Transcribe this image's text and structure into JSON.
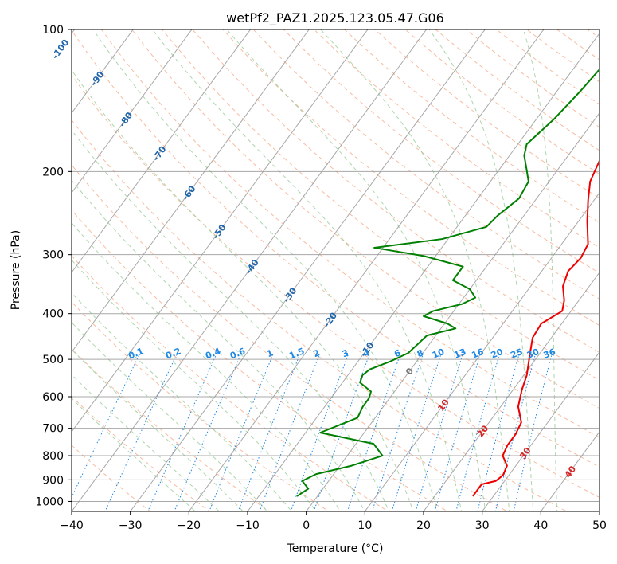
{
  "chart_data": {
    "type": "line",
    "title": "wetPf2_PAZ1.2025.123.05.47.G06",
    "xlabel": "Temperature (°C)",
    "ylabel": "Pressure (hPa)",
    "xlim": [
      -40,
      50
    ],
    "ylim": [
      1050,
      100
    ],
    "y_scale": "log",
    "grid": true,
    "x_ticks": [
      "−40",
      "−30",
      "−20",
      "−10",
      "0",
      "10",
      "20",
      "30",
      "40",
      "50"
    ],
    "x_tick_values": [
      -40,
      -30,
      -20,
      -10,
      0,
      10,
      20,
      30,
      40,
      50
    ],
    "y_ticks": [
      "100",
      "200",
      "300",
      "400",
      "500",
      "600",
      "700",
      "800",
      "900",
      "1000"
    ],
    "y_tick_values": [
      100,
      200,
      300,
      400,
      500,
      600,
      700,
      800,
      900,
      1000
    ],
    "colors": {
      "temperature": "#ee0000",
      "dewpoint": "#008000",
      "isotherm": "#999999",
      "dry_adiabat": "#f4a582",
      "moist_adiabat": "#99cc99",
      "mixing_ratio": "#1e88e5",
      "isotherm_label": "#2166ac",
      "adiabat_label": "#d62728"
    },
    "series": [
      {
        "name": "",
        "role": "temperature",
        "points": [
          {
            "t": -0.5,
            "p": 100
          },
          {
            "t": 2.0,
            "p": 115
          },
          {
            "t": 2.0,
            "p": 130
          },
          {
            "t": 2.5,
            "p": 150
          },
          {
            "t": 4.5,
            "p": 170
          },
          {
            "t": 6.0,
            "p": 190
          },
          {
            "t": 7.0,
            "p": 210
          },
          {
            "t": 9.0,
            "p": 230
          },
          {
            "t": 11.5,
            "p": 255
          },
          {
            "t": 14.5,
            "p": 285
          },
          {
            "t": 15.0,
            "p": 305
          },
          {
            "t": 14.5,
            "p": 325
          },
          {
            "t": 15.5,
            "p": 350
          },
          {
            "t": 17.5,
            "p": 375
          },
          {
            "t": 18.5,
            "p": 395
          },
          {
            "t": 16.5,
            "p": 420
          },
          {
            "t": 16.8,
            "p": 450
          },
          {
            "t": 18.5,
            "p": 490
          },
          {
            "t": 20.5,
            "p": 540
          },
          {
            "t": 21.5,
            "p": 580
          },
          {
            "t": 23.0,
            "p": 630
          },
          {
            "t": 25.5,
            "p": 680
          },
          {
            "t": 26.0,
            "p": 720
          },
          {
            "t": 26.0,
            "p": 760
          },
          {
            "t": 26.5,
            "p": 800
          },
          {
            "t": 28.5,
            "p": 840
          },
          {
            "t": 29.0,
            "p": 880
          },
          {
            "t": 28.5,
            "p": 905
          },
          {
            "t": 26.5,
            "p": 920
          },
          {
            "t": 26.5,
            "p": 960
          },
          {
            "t": 26.5,
            "p": 975
          }
        ]
      },
      {
        "name": "",
        "role": "dewpoint",
        "points": [
          {
            "t": -0.5,
            "p": 100
          },
          {
            "t": -1.5,
            "p": 107
          },
          {
            "t": -4.0,
            "p": 115
          },
          {
            "t": -5.5,
            "p": 122
          },
          {
            "t": -6.0,
            "p": 135
          },
          {
            "t": -7.0,
            "p": 155
          },
          {
            "t": -8.5,
            "p": 175
          },
          {
            "t": -7.5,
            "p": 185
          },
          {
            "t": -5.5,
            "p": 197
          },
          {
            "t": -3.5,
            "p": 210
          },
          {
            "t": -3.0,
            "p": 228
          },
          {
            "t": -4.5,
            "p": 248
          },
          {
            "t": -5.0,
            "p": 262
          },
          {
            "t": -11.0,
            "p": 278
          },
          {
            "t": -21.5,
            "p": 290
          },
          {
            "t": -12.0,
            "p": 302
          },
          {
            "t": -4.0,
            "p": 318
          },
          {
            "t": -4.0,
            "p": 340
          },
          {
            "t": 0.0,
            "p": 355
          },
          {
            "t": 2.0,
            "p": 370
          },
          {
            "t": 0.5,
            "p": 382
          },
          {
            "t": -3.5,
            "p": 395
          },
          {
            "t": -4.5,
            "p": 405
          },
          {
            "t": 0.5,
            "p": 420
          },
          {
            "t": 2.5,
            "p": 430
          },
          {
            "t": -1.5,
            "p": 445
          },
          {
            "t": -2.0,
            "p": 465
          },
          {
            "t": -2.5,
            "p": 485
          },
          {
            "t": -4.5,
            "p": 505
          },
          {
            "t": -7.0,
            "p": 525
          },
          {
            "t": -7.5,
            "p": 540
          },
          {
            "t": -7.0,
            "p": 560
          },
          {
            "t": -4.0,
            "p": 585
          },
          {
            "t": -3.5,
            "p": 605
          },
          {
            "t": -3.5,
            "p": 630
          },
          {
            "t": -3.0,
            "p": 665
          },
          {
            "t": -7.5,
            "p": 715
          },
          {
            "t": 3.0,
            "p": 755
          },
          {
            "t": 6.0,
            "p": 800
          },
          {
            "t": 2.0,
            "p": 840
          },
          {
            "t": -3.0,
            "p": 875
          },
          {
            "t": -4.5,
            "p": 905
          },
          {
            "t": -2.5,
            "p": 940
          },
          {
            "t": -3.5,
            "p": 975
          }
        ]
      }
    ],
    "isotherm_labels": [
      "-100",
      "-90",
      "-80",
      "-70",
      "-60",
      "-50",
      "-40",
      "-30",
      "-20",
      "-10",
      "0",
      "10",
      "20",
      "30",
      "40"
    ],
    "isotherm_label_values": [
      -100,
      -90,
      -80,
      -70,
      -60,
      -50,
      -40,
      -30,
      -20,
      -10,
      0,
      10,
      20,
      30,
      40
    ],
    "isotherm_label_pressures": [
      110,
      127,
      155,
      183,
      222,
      268,
      318,
      365,
      412,
      476,
      530,
      625,
      710,
      790,
      865
    ],
    "mixing_ratio_labels": [
      "0.1",
      "0.2",
      "0.4",
      "0.6",
      "1",
      "1.5",
      "2",
      "3",
      "4",
      "6",
      "8",
      "10",
      "13",
      "16",
      "20",
      "25",
      "30",
      "36"
    ],
    "mixing_ratio_values": [
      0.1,
      0.2,
      0.4,
      0.6,
      1,
      1.5,
      2,
      3,
      4,
      6,
      8,
      10,
      13,
      16,
      20,
      25,
      30,
      36
    ]
  }
}
